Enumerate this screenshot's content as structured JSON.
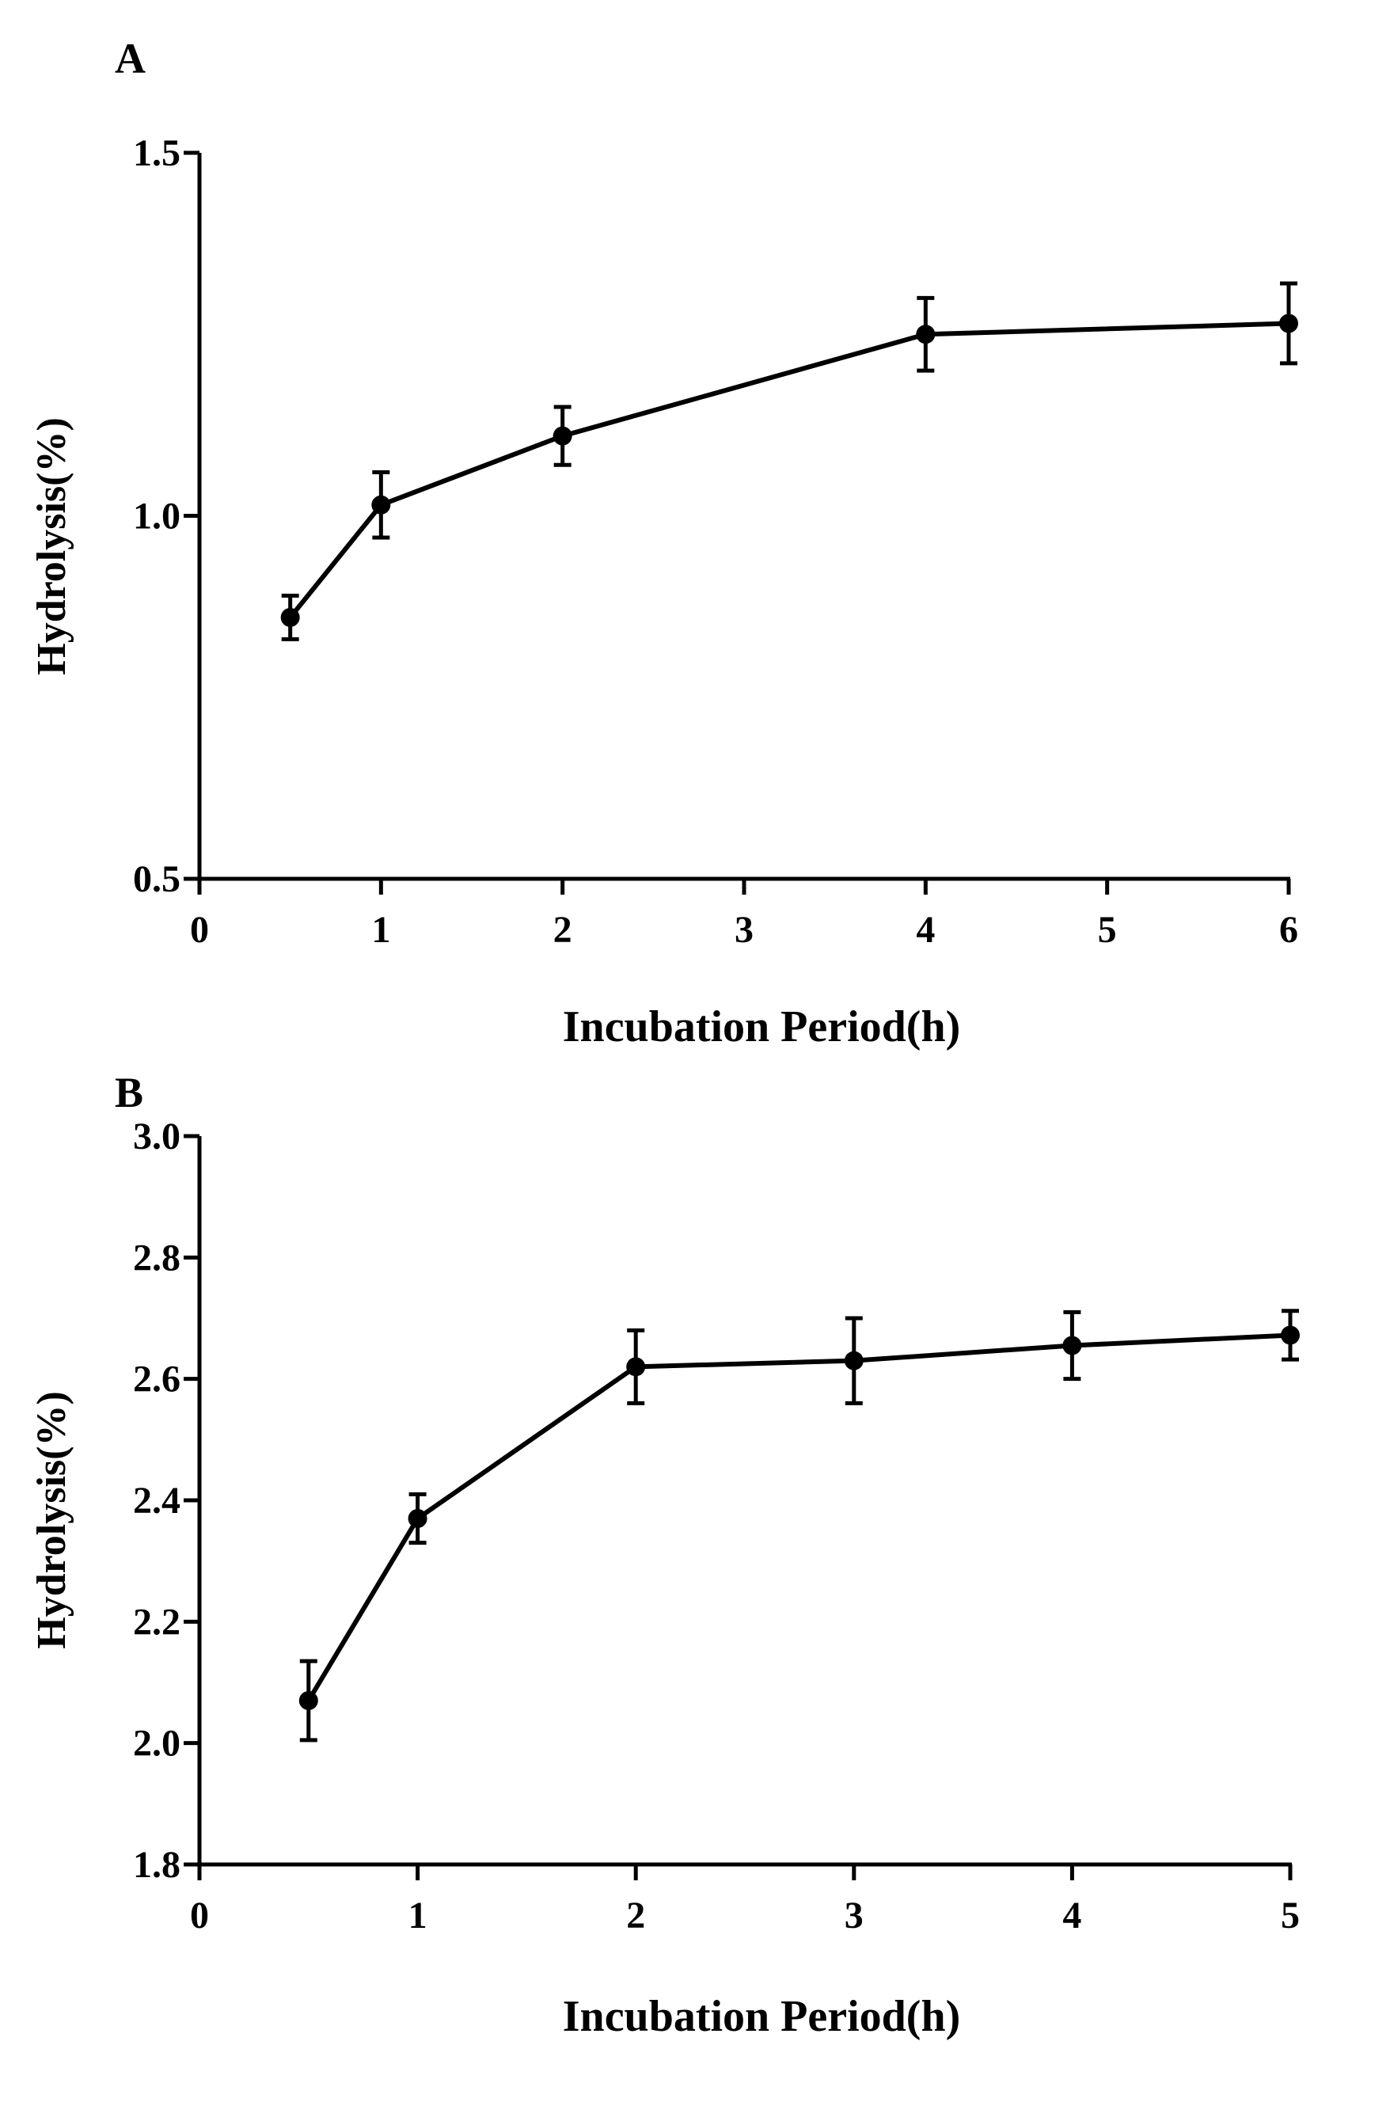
{
  "chart_data": [
    {
      "panel_label": "A",
      "type": "line",
      "title": "",
      "xlabel": "Incubation Period(h)",
      "ylabel": "Hydrolysis(%)",
      "xlim": [
        0,
        6
      ],
      "ylim": [
        0.5,
        1.5
      ],
      "x_ticks": [
        0,
        1,
        2,
        3,
        4,
        5,
        6
      ],
      "x_tick_labels": [
        "0",
        "1",
        "2",
        "3",
        "4",
        "5",
        "6"
      ],
      "y_ticks": [
        0.5,
        1.0,
        1.5
      ],
      "y_tick_labels": [
        "0.5",
        "1.0",
        "1.5"
      ],
      "grid": false,
      "series": [
        {
          "name": "Hydrolysis",
          "x": [
            0.5,
            1,
            2,
            4,
            6
          ],
          "values": [
            0.86,
            1.015,
            1.11,
            1.25,
            1.265
          ],
          "error": [
            0.03,
            0.045,
            0.04,
            0.05,
            0.055
          ]
        }
      ]
    },
    {
      "panel_label": "B",
      "type": "line",
      "title": "",
      "xlabel": "Incubation Period(h)",
      "ylabel": "Hydrolysis(%)",
      "xlim": [
        0,
        5
      ],
      "ylim": [
        1.8,
        3.0
      ],
      "x_ticks": [
        0,
        1,
        2,
        3,
        4,
        5
      ],
      "x_tick_labels": [
        "0",
        "1",
        "2",
        "3",
        "4",
        "5"
      ],
      "y_ticks": [
        1.8,
        2.0,
        2.2,
        2.4,
        2.6,
        2.8,
        3.0
      ],
      "y_tick_labels": [
        "1.8",
        "2.0",
        "2.2",
        "2.4",
        "2.6",
        "2.8",
        "3.0"
      ],
      "grid": false,
      "series": [
        {
          "name": "Hydrolysis",
          "x": [
            0.5,
            1,
            2,
            3,
            4,
            5
          ],
          "values": [
            2.07,
            2.37,
            2.62,
            2.63,
            2.655,
            2.672
          ],
          "error": [
            0.065,
            0.04,
            0.06,
            0.07,
            0.055,
            0.04
          ]
        }
      ]
    }
  ],
  "colors": {
    "ink": "#000000",
    "background": "#ffffff"
  }
}
